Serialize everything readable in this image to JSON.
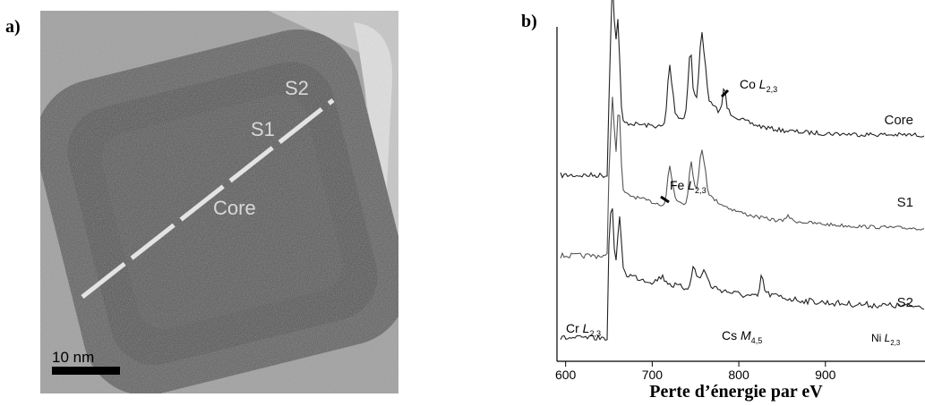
{
  "panels": [
    {
      "label": "a)",
      "annotations": [
        "S2",
        "S1",
        "Core"
      ],
      "scale_bar": "10 nm"
    },
    {
      "label": "b)"
    }
  ],
  "chart_data": {
    "type": "line",
    "xlabel": "Perte d’énergie par eV",
    "xlim": [
      590,
      1015
    ],
    "xticks": [
      600,
      700,
      800,
      900
    ],
    "series_labels": [
      "Core",
      "S1",
      "S2"
    ],
    "edge_labels": [
      {
        "element": "Co",
        "edge": "L",
        "sub": "2,3"
      },
      {
        "element": "Fe",
        "edge": "L",
        "sub": "2,3"
      },
      {
        "element": "Cr",
        "edge": "L",
        "sub": "2,3"
      },
      {
        "element": "Cs",
        "edge": "M",
        "sub": "4,5"
      },
      {
        "element": "Ni",
        "edge": "L",
        "sub": "2,3"
      }
    ]
  }
}
